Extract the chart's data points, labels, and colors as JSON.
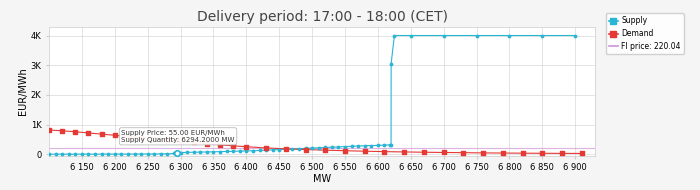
{
  "title": "Delivery period: 17:00 - 18:00 (CET)",
  "xlabel": "MW",
  "ylabel": "EUR/MWh",
  "xlim": [
    6100,
    6930
  ],
  "ylim": [
    -50,
    4300
  ],
  "yticks": [
    0,
    1000,
    2000,
    3000,
    4000
  ],
  "ytick_labels": [
    "0",
    "1K",
    "2K",
    "3K",
    "4K"
  ],
  "xticks": [
    6150,
    6200,
    6250,
    6300,
    6350,
    6400,
    6450,
    6500,
    6550,
    6600,
    6650,
    6700,
    6750,
    6800,
    6850,
    6900
  ],
  "supply_color": "#29b6d4",
  "demand_color": "#e53935",
  "fi_price_color": "#ce93d8",
  "fi_price": 220.04,
  "marker_x": 6294.2,
  "marker_y": 55.0,
  "annotation_text": "Supply Price: 55.00 EUR/MWh\nSupply Quantity: 6294.2000 MW",
  "bg_color": "#f5f5f5",
  "plot_bg": "#ffffff",
  "grid_color": "#d0d0d0",
  "title_fontsize": 10,
  "axis_fontsize": 6,
  "legend_labels": [
    "Supply",
    "Demand",
    "FI price: 220.04"
  ],
  "supply_data_x": [
    6100,
    6110,
    6120,
    6130,
    6140,
    6150,
    6160,
    6170,
    6180,
    6190,
    6200,
    6210,
    6220,
    6230,
    6240,
    6250,
    6260,
    6270,
    6280,
    6290,
    6294.2,
    6300,
    6310,
    6320,
    6330,
    6340,
    6350,
    6360,
    6370,
    6380,
    6390,
    6400,
    6410,
    6420,
    6430,
    6440,
    6450,
    6460,
    6470,
    6480,
    6490,
    6500,
    6510,
    6520,
    6530,
    6540,
    6550,
    6560,
    6570,
    6580,
    6590,
    6600,
    6610,
    6619,
    6620,
    6620.1,
    6625,
    6650,
    6700,
    6750,
    6800,
    6850,
    6900
  ],
  "supply_data_y": [
    5,
    5,
    6,
    6,
    6,
    6,
    6,
    6,
    6,
    7,
    8,
    8,
    8,
    9,
    10,
    10,
    11,
    14,
    16,
    28,
    55,
    60,
    65,
    70,
    75,
    80,
    85,
    90,
    95,
    100,
    110,
    115,
    120,
    130,
    140,
    150,
    160,
    170,
    180,
    190,
    200,
    210,
    220,
    230,
    240,
    250,
    260,
    270,
    280,
    290,
    295,
    300,
    310,
    320,
    320,
    3050,
    4000,
    4000,
    4000,
    4000,
    4000,
    4000,
    4000
  ],
  "demand_data_x": [
    6100,
    6120,
    6140,
    6160,
    6180,
    6200,
    6220,
    6240,
    6260,
    6280,
    6300,
    6320,
    6340,
    6360,
    6380,
    6400,
    6430,
    6460,
    6490,
    6520,
    6550,
    6580,
    6610,
    6640,
    6670,
    6700,
    6730,
    6760,
    6790,
    6820,
    6850,
    6880,
    6910
  ],
  "demand_data_y": [
    820,
    790,
    760,
    720,
    680,
    640,
    600,
    560,
    520,
    480,
    440,
    400,
    360,
    320,
    285,
    255,
    215,
    185,
    160,
    140,
    120,
    105,
    90,
    80,
    70,
    62,
    55,
    48,
    43,
    38,
    35,
    32,
    30
  ]
}
